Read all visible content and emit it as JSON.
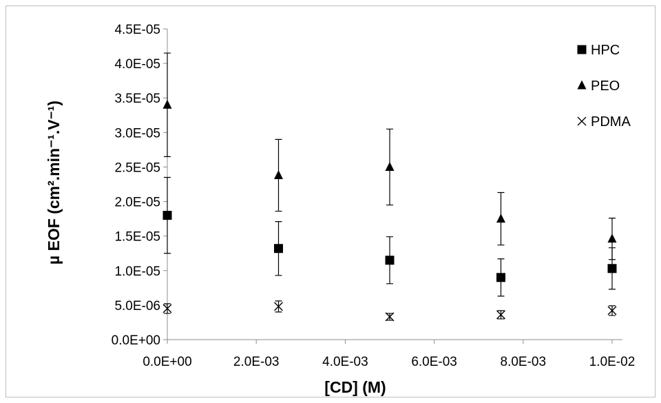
{
  "chart_data": {
    "type": "scatter",
    "title": "",
    "xlabel": "[CD] (M)",
    "ylabel": "µ EOF (cm².min⁻¹.V⁻¹)",
    "xlim": [
      0,
      0.01
    ],
    "ylim": [
      0,
      4.5e-05
    ],
    "x_ticks": [
      0,
      0.002,
      0.004,
      0.006,
      0.008,
      0.01
    ],
    "x_tick_labels": [
      "0.0E+00",
      "2.0E-03",
      "4.0E-03",
      "6.0E-03",
      "8.0E-03",
      "1.0E-02"
    ],
    "y_ticks": [
      0,
      5e-06,
      1e-05,
      1.5e-05,
      2e-05,
      2.5e-05,
      3e-05,
      3.5e-05,
      4e-05,
      4.5e-05
    ],
    "y_tick_labels": [
      "0.0E+00",
      "5.0E-06",
      "1.0E-05",
      "1.5E-05",
      "2.0E-05",
      "2.5E-05",
      "3.0E-05",
      "3.5E-05",
      "4.0E-05",
      "4.5E-05"
    ],
    "grid": false,
    "legend_position": "top-right",
    "series": [
      {
        "name": "HPC",
        "marker": "square",
        "color": "#000000",
        "x": [
          0,
          0.0025,
          0.005,
          0.0075,
          0.01
        ],
        "y": [
          1.8e-05,
          1.32e-05,
          1.15e-05,
          9e-06,
          1.03e-05
        ],
        "error": [
          5.5e-06,
          3.9e-06,
          3.4e-06,
          2.7e-06,
          3e-06
        ]
      },
      {
        "name": "PEO",
        "marker": "triangle",
        "color": "#000000",
        "x": [
          0,
          0.0025,
          0.005,
          0.0075,
          0.01
        ],
        "y": [
          3.4e-05,
          2.38e-05,
          2.5e-05,
          1.75e-05,
          1.46e-05
        ],
        "error": [
          7.5e-06,
          5.2e-06,
          5.5e-06,
          3.8e-06,
          3e-06
        ]
      },
      {
        "name": "PDMA",
        "marker": "x",
        "color": "#000000",
        "x": [
          0,
          0.0025,
          0.005,
          0.0075,
          0.01
        ],
        "y": [
          4.5e-06,
          4.8e-06,
          3.3e-06,
          3.6e-06,
          4.2e-06
        ],
        "error": [
          7e-07,
          8e-07,
          5e-07,
          6e-07,
          7e-07
        ]
      }
    ]
  }
}
